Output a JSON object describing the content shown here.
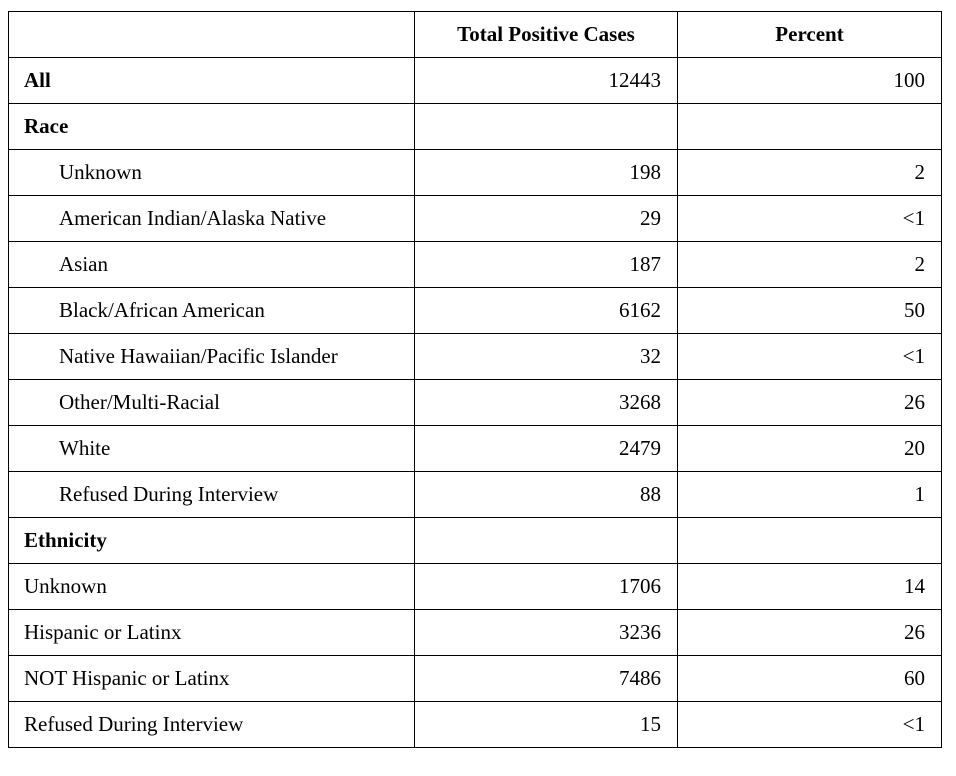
{
  "table": {
    "columns": [
      "Total Positive Cases",
      "Percent"
    ],
    "rows": [
      {
        "label": "All",
        "cases": 12443,
        "percent": 100
      },
      {
        "heading": "Race",
        "items": [
          {
            "label": "Unknown",
            "cases": 198,
            "percent": 2
          },
          {
            "label": "American Indian/Alaska Native",
            "cases": 29,
            "percent": "<1"
          },
          {
            "label": "Asian",
            "cases": 187,
            "percent": 2
          },
          {
            "label": "Black/African American",
            "cases": 6162,
            "percent": 50
          },
          {
            "label": "Native Hawaiian/Pacific Islander",
            "cases": 32,
            "percent": "<1"
          },
          {
            "label": "Other/Multi-Racial",
            "cases": 3268,
            "percent": 26
          },
          {
            "label": "White",
            "cases": 2479,
            "percent": 20
          },
          {
            "label": "Refused During Interview",
            "cases": 88,
            "percent": 1
          }
        ]
      },
      {
        "heading": "Ethnicity"
      },
      {
        "label": "Unknown",
        "cases": 1706,
        "percent": 14
      },
      {
        "label": "Hispanic or Latinx",
        "cases": 3236,
        "percent": 26
      },
      {
        "label": "NOT Hispanic or Latinx",
        "cases": 7486,
        "percent": 60
      },
      {
        "label": "Refused During Interview",
        "cases": 15,
        "percent": "<1"
      }
    ]
  }
}
